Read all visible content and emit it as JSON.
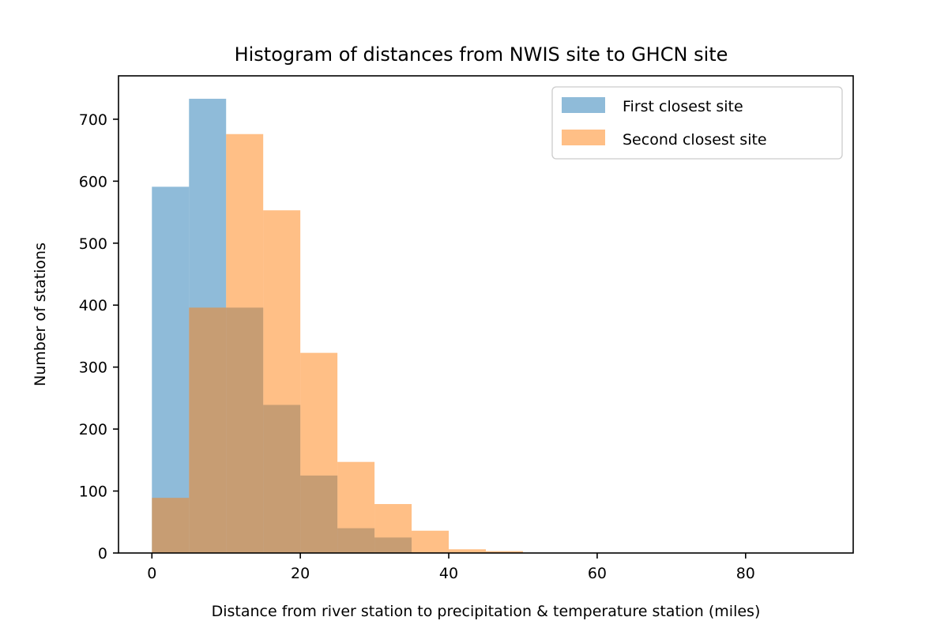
{
  "chart_data": {
    "type": "histogram",
    "title": "Histogram of distances from NWIS site to GHCN site",
    "xlabel": "Distance from river station to precipitation & temperature station (miles)",
    "ylabel": "Number of stations",
    "xlim": [
      -4.5,
      94.5
    ],
    "ylim": [
      0,
      770
    ],
    "bin_edges": [
      0,
      5,
      10,
      15,
      20,
      25,
      30,
      35,
      40,
      45,
      50,
      55,
      60,
      65,
      70,
      75,
      80,
      85,
      90
    ],
    "x_ticks": [
      0,
      20,
      40,
      60,
      80
    ],
    "y_ticks": [
      0,
      100,
      200,
      300,
      400,
      500,
      600,
      700
    ],
    "grid": false,
    "legend_position": "top-right",
    "series": [
      {
        "name": "First closest site",
        "color": "#1f77b4",
        "opacity": 0.5,
        "values": [
          591,
          733,
          396,
          239,
          125,
          40,
          25,
          1,
          0,
          0,
          0,
          0,
          0,
          0,
          0,
          0,
          0,
          0
        ]
      },
      {
        "name": "Second closest site",
        "color": "#ff7f0e",
        "opacity": 0.5,
        "values": [
          89,
          396,
          676,
          553,
          323,
          147,
          79,
          36,
          6,
          3,
          0,
          0,
          0,
          0,
          0,
          0,
          0,
          0
        ]
      }
    ]
  }
}
